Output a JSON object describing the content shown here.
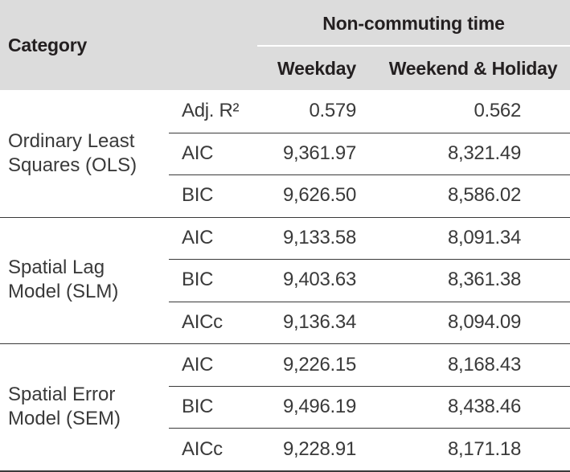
{
  "header": {
    "category": "Category",
    "group_title": "Non-commuting time",
    "col_weekday": "Weekday",
    "col_weekend": "Weekend & Holiday"
  },
  "groups": [
    {
      "name": "Ordinary Least Squares (OLS)",
      "rows": [
        {
          "metric": "Adj. R²",
          "weekday": "0.579",
          "weekend": "0.562"
        },
        {
          "metric": "AIC",
          "weekday": "9,361.97",
          "weekend": "8,321.49"
        },
        {
          "metric": "BIC",
          "weekday": "9,626.50",
          "weekend": "8,586.02"
        }
      ]
    },
    {
      "name": "Spatial Lag Model (SLM)",
      "rows": [
        {
          "metric": "AIC",
          "weekday": "9,133.58",
          "weekend": "8,091.34"
        },
        {
          "metric": "BIC",
          "weekday": "9,403.63",
          "weekend": "8,361.38"
        },
        {
          "metric": "AICc",
          "weekday": "9,136.34",
          "weekend": "8,094.09"
        }
      ]
    },
    {
      "name": "Spatial Error Model (SEM)",
      "rows": [
        {
          "metric": "AIC",
          "weekday": "9,226.15",
          "weekend": "8,168.43"
        },
        {
          "metric": "BIC",
          "weekday": "9,496.19",
          "weekend": "8,438.46"
        },
        {
          "metric": "AICc",
          "weekday": "9,228.91",
          "weekend": "8,171.18"
        }
      ]
    }
  ]
}
